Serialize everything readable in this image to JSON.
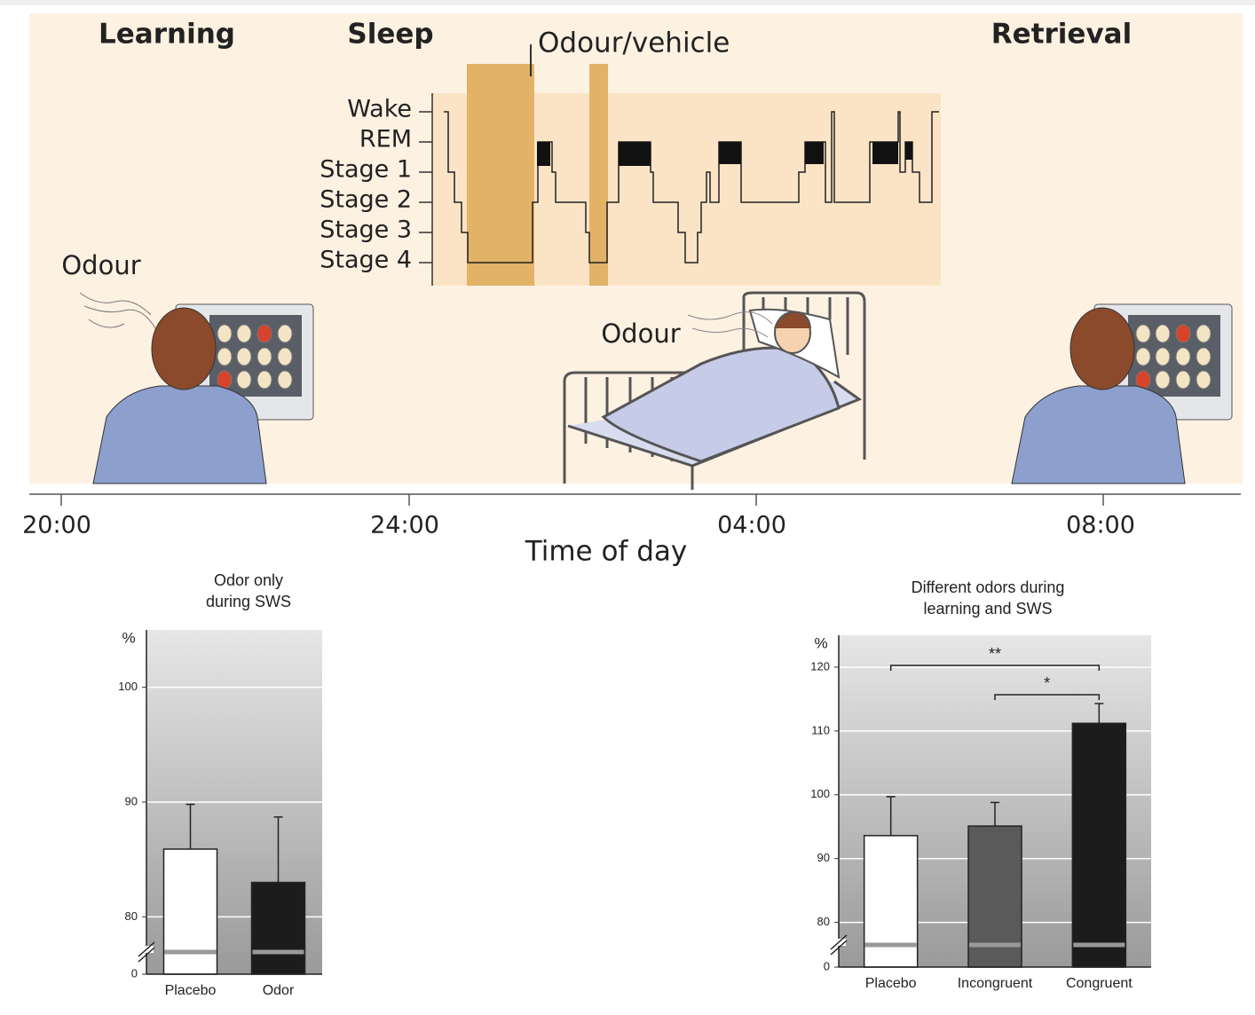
{
  "timeline": {
    "phases": [
      "Learning",
      "Sleep",
      "Retrieval"
    ],
    "odour_vehicle": "Odour/vehicle",
    "stages": [
      "Wake",
      "REM",
      "Stage 1",
      "Stage 2",
      "Stage 3",
      "Stage 4"
    ],
    "odour_labels": [
      "Odour",
      "Odour"
    ],
    "time_ticks": [
      "20:00",
      "24:00",
      "04:00",
      "08:00"
    ],
    "xlabel": "Time of day"
  },
  "chart_data": [
    {
      "type": "bar",
      "title": "Odor only\nduring SWS",
      "ylabel": "%",
      "categories": [
        "Placebo",
        "Odor"
      ],
      "values": [
        85.9,
        83.0
      ],
      "errors": [
        3.9,
        5.7
      ],
      "colors": [
        "#ffffff",
        "#1c1c1c"
      ],
      "ylim": [
        0,
        105
      ],
      "axis_break": [
        0,
        75
      ],
      "yticks": [
        0,
        80,
        90,
        100
      ],
      "grid": true
    },
    {
      "type": "bar",
      "title": "Different odors during\nlearning and SWS",
      "ylabel": "%",
      "categories": [
        "Placebo",
        "Incongruent",
        "Congruent"
      ],
      "values": [
        93.6,
        95.1,
        111.2
      ],
      "errors": [
        6.1,
        3.7,
        3.1
      ],
      "colors": [
        "#ffffff",
        "#5a5a5a",
        "#1c1c1c"
      ],
      "ylim": [
        0,
        125
      ],
      "axis_break": [
        0,
        73
      ],
      "yticks": [
        0,
        80,
        90,
        100,
        110,
        120
      ],
      "grid": true,
      "annotations": [
        {
          "label": "**",
          "between": [
            "Placebo",
            "Congruent"
          ]
        },
        {
          "label": "*",
          "between": [
            "Incongruent",
            "Congruent"
          ]
        }
      ]
    }
  ]
}
